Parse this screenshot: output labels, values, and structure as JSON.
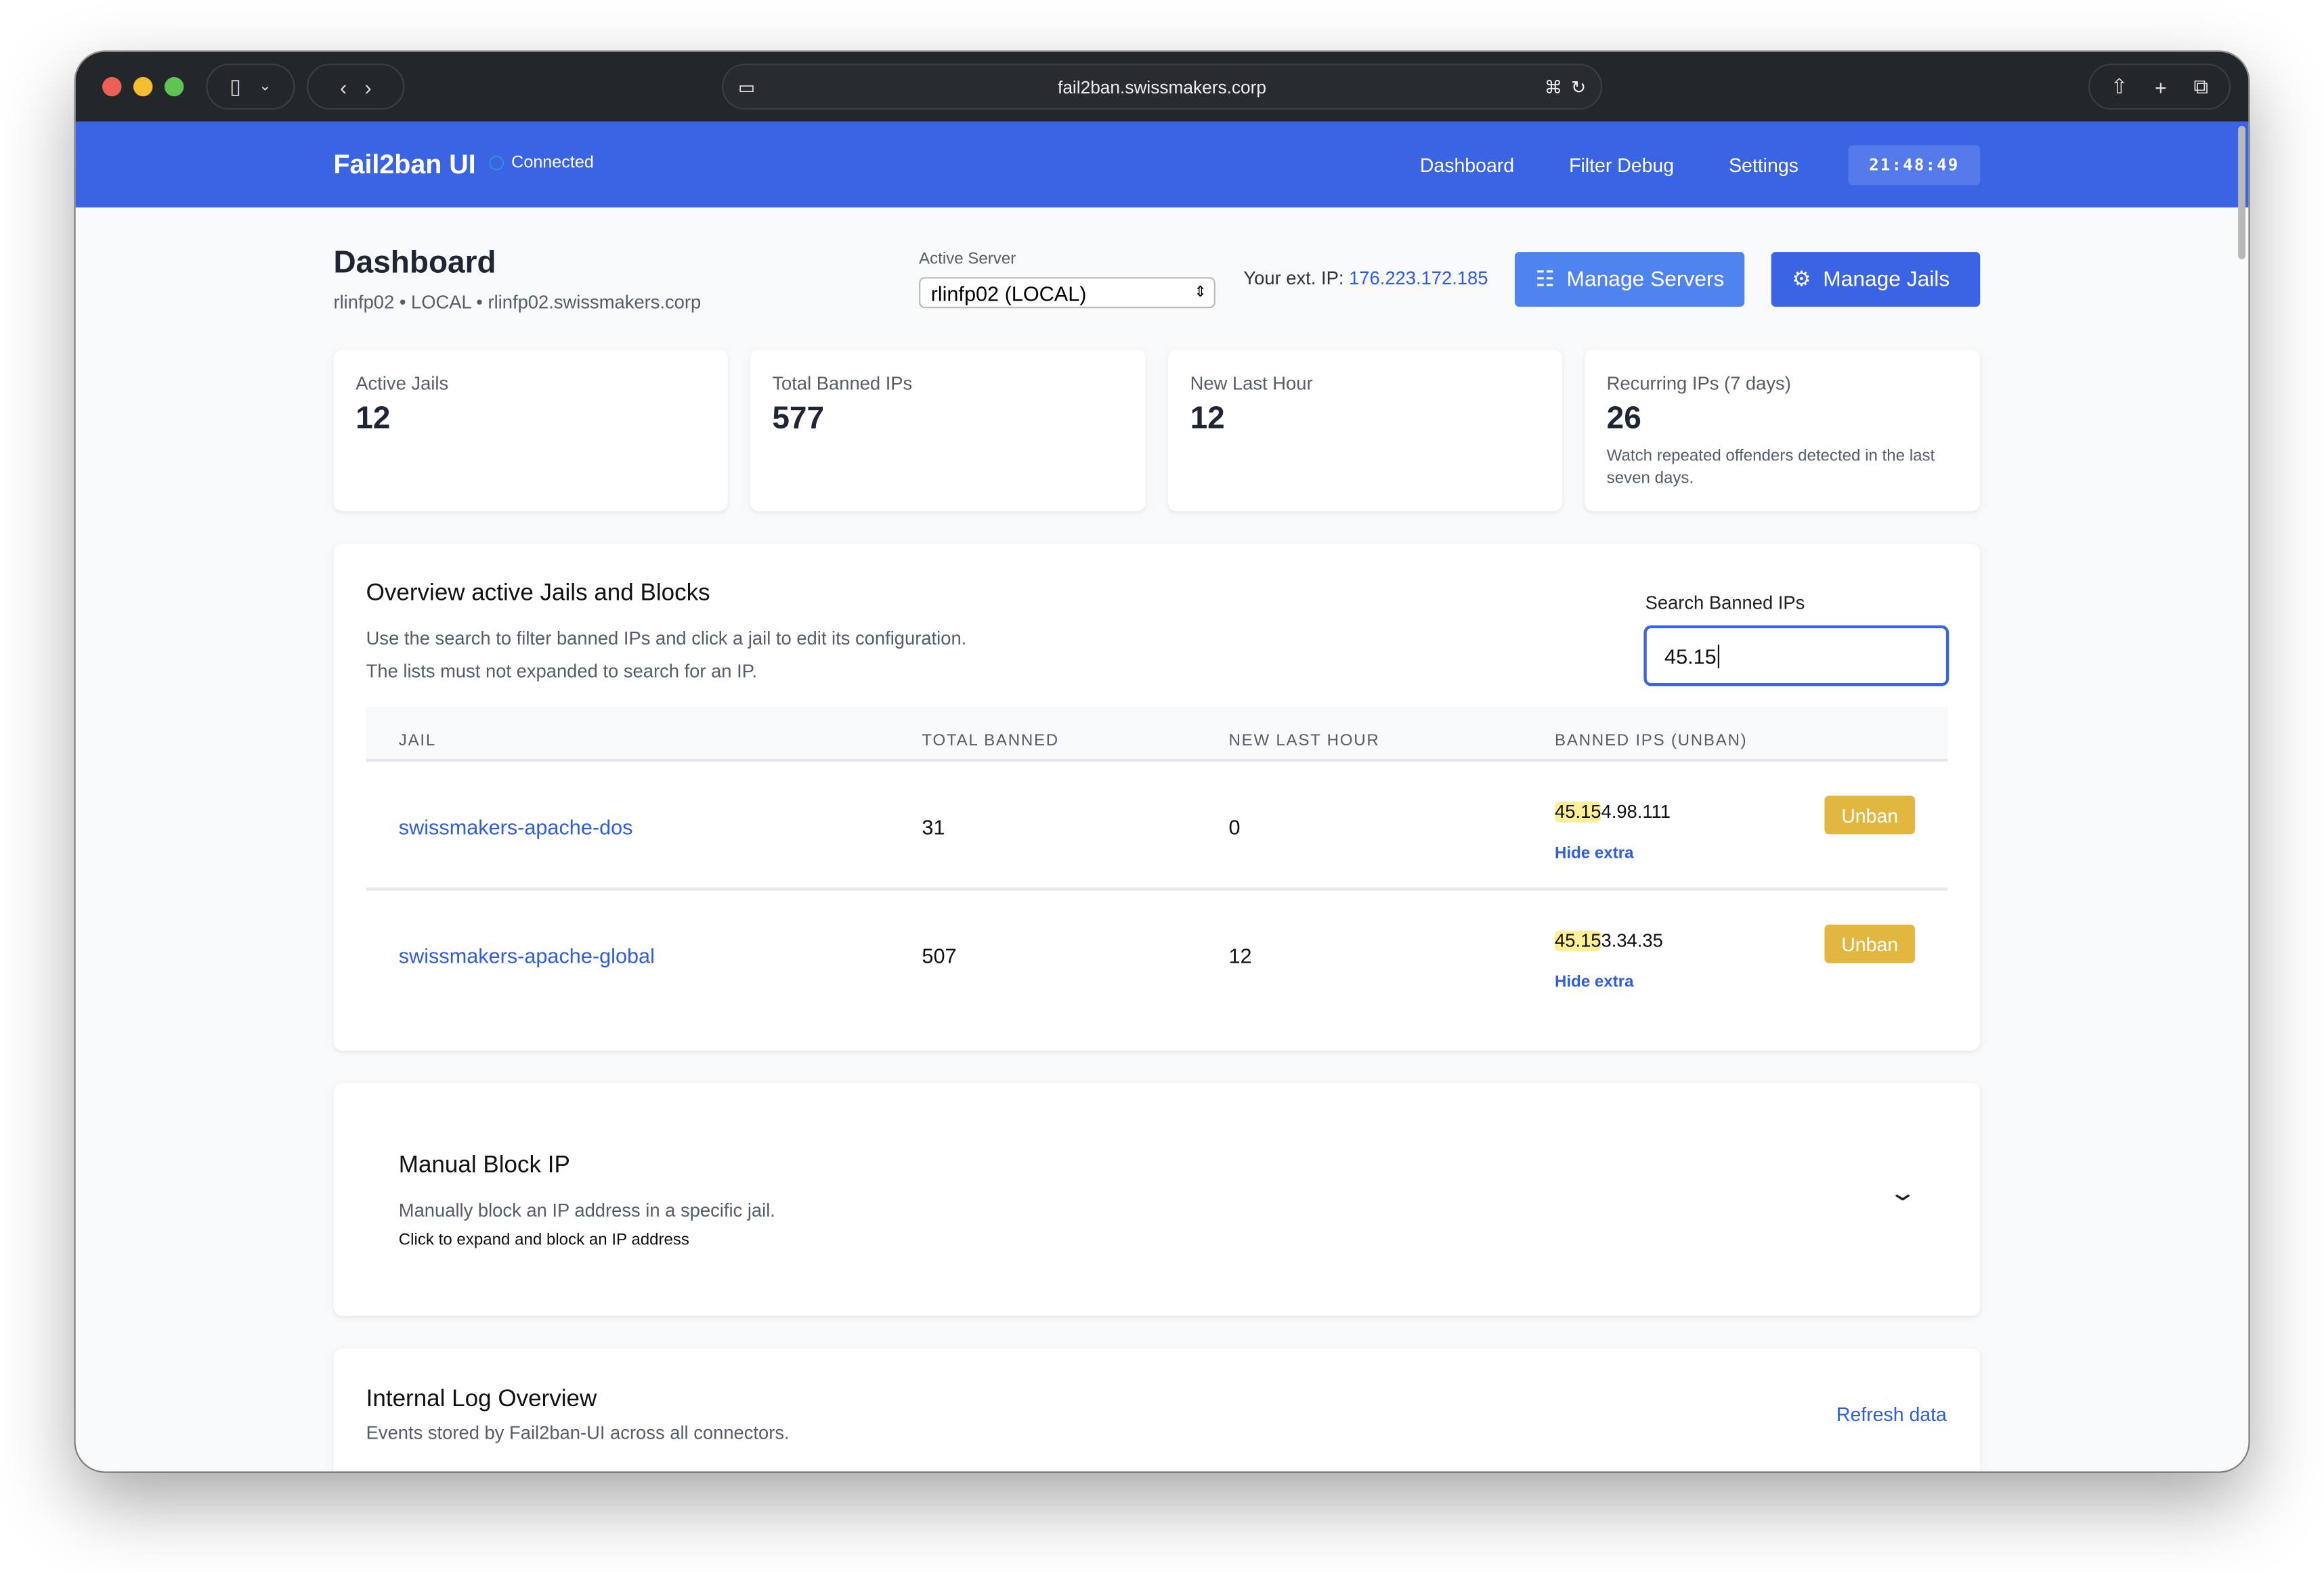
{
  "browser": {
    "url": "fail2ban.swissmakers.corp"
  },
  "nav": {
    "brand": "Fail2ban UI",
    "status": "Connected",
    "links": [
      "Dashboard",
      "Filter Debug",
      "Settings"
    ],
    "clock": "21:48:49"
  },
  "header": {
    "title": "Dashboard",
    "subtitle": "rlinfp02 • LOCAL • rlinfp02.swissmakers.corp",
    "server_label": "Active Server",
    "server_value": "rlinfp02 (LOCAL)",
    "ext_ip_label": "Your ext. IP:",
    "ext_ip": "176.223.172.185",
    "manage_servers": "Manage Servers",
    "manage_jails": "Manage Jails"
  },
  "stats": [
    {
      "title": "Active Jails",
      "value": "12"
    },
    {
      "title": "Total Banned IPs",
      "value": "577"
    },
    {
      "title": "New Last Hour",
      "value": "12"
    },
    {
      "title": "Recurring IPs (7 days)",
      "value": "26",
      "desc": "Watch repeated offenders detected in the last seven days."
    }
  ],
  "overview": {
    "title": "Overview active Jails and Blocks",
    "desc1": "Use the search to filter banned IPs and click a jail to edit its configuration.",
    "desc2": "The lists must not expanded to search for an IP.",
    "search_label": "Search Banned IPs",
    "search_value": "45.15",
    "columns": [
      "JAIL",
      "TOTAL BANNED",
      "NEW LAST HOUR",
      "BANNED IPS (UNBAN)"
    ],
    "rows": [
      {
        "jail": "swissmakers-apache-dos",
        "total": "31",
        "new": "0",
        "ip_match": "45.15",
        "ip_rest": "4.98.111",
        "unban": "Unban",
        "hide": "Hide extra"
      },
      {
        "jail": "swissmakers-apache-global",
        "total": "507",
        "new": "12",
        "ip_match": "45.15",
        "ip_rest": "3.34.35",
        "unban": "Unban",
        "hide": "Hide extra"
      }
    ]
  },
  "manual": {
    "title": "Manual Block IP",
    "desc": "Manually block an IP address in a specific jail.",
    "hint": "Click to expand and block an IP address"
  },
  "log": {
    "title": "Internal Log Overview",
    "desc": "Events stored by Fail2ban-UI across all connectors.",
    "refresh": "Refresh data"
  },
  "colors": {
    "nav": "#3a64e3",
    "accent": "#2f5de0",
    "unban": "#e2b740",
    "highlight": "#fcef97"
  }
}
